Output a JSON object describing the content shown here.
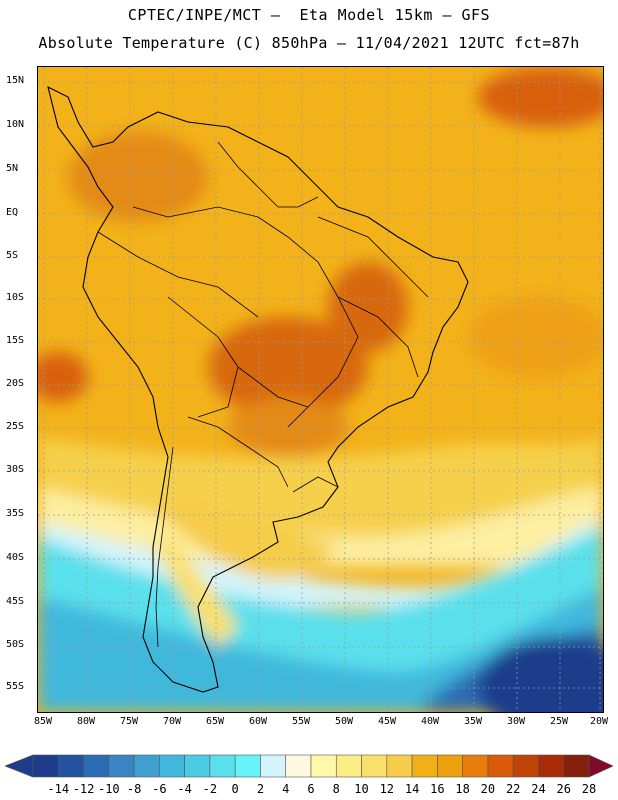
{
  "title": {
    "line1": "CPTEC/INPE/MCT –  Eta Model 15km – GFS",
    "line2": "Absolute Temperature (C) 850hPa – 11/04/2021 12UTC fct=87h"
  },
  "lat_labels": [
    "15N",
    "10N",
    "5N",
    "EQ",
    "5S",
    "10S",
    "15S",
    "20S",
    "25S",
    "30S",
    "35S",
    "40S",
    "45S",
    "50S",
    "55S"
  ],
  "lon_labels": [
    "85W",
    "80W",
    "75W",
    "70W",
    "65W",
    "60W",
    "55W",
    "50W",
    "45W",
    "40W",
    "35W",
    "30W",
    "25W",
    "20W"
  ],
  "colorbar": {
    "labels": [
      "-14",
      "-12",
      "-10",
      "-8",
      "-6",
      "-4",
      "-2",
      "0",
      "2",
      "4",
      "6",
      "8",
      "10",
      "12",
      "14",
      "16",
      "18",
      "20",
      "22",
      "24",
      "26",
      "28"
    ],
    "colors": [
      "#1e3c8c",
      "#2352a0",
      "#2c6cb4",
      "#3a86c4",
      "#3fa0d0",
      "#3fb8dc",
      "#4ccce4",
      "#5ae0ec",
      "#66f4f8",
      "#d4f4fc",
      "#fff8e0",
      "#fff8a8",
      "#fcec84",
      "#fae06a",
      "#f6cc4a",
      "#f2b018",
      "#eea00e",
      "#e87c0a",
      "#d85a0a",
      "#c04408",
      "#a82c08",
      "#84200c"
    ]
  }
}
